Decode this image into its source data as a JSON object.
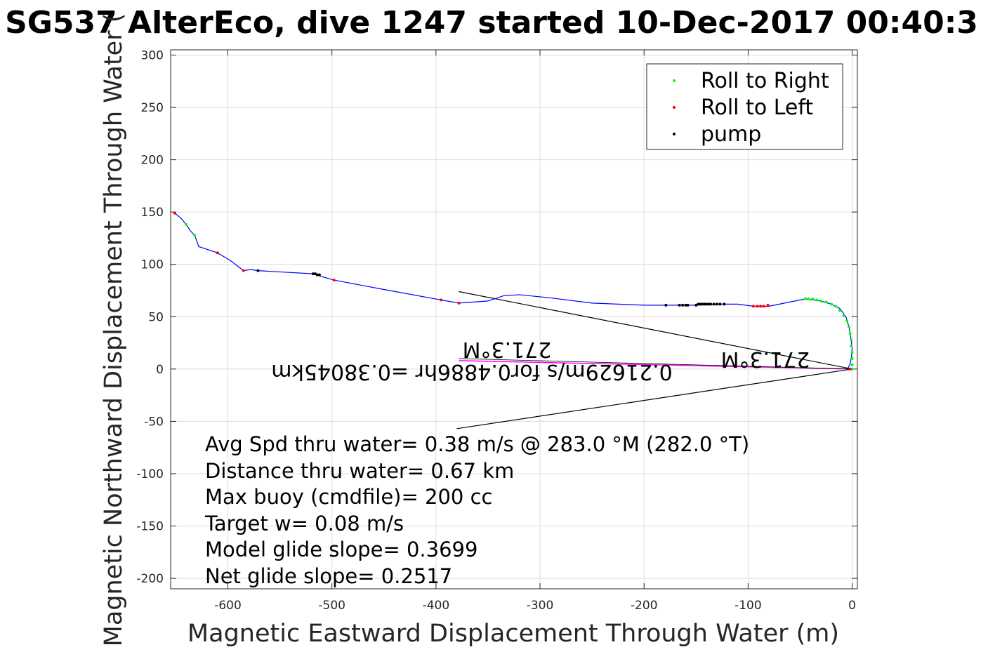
{
  "chart_data": {
    "type": "scatter",
    "title": "SG537 AlterEco, dive 1247 started 10-Dec-2017 00:40:3",
    "xlabel": "Magnetic Eastward Displacement Through Water (m)",
    "ylabel": "Magnetic Northward Displacement Through Water (",
    "xlim": [
      -655,
      5
    ],
    "ylim": [
      -210,
      305
    ],
    "xticks": [
      -600,
      -500,
      -400,
      -300,
      -200,
      -100,
      0
    ],
    "yticks": [
      300,
      250,
      200,
      150,
      100,
      50,
      0,
      -50,
      -100,
      -150,
      -200
    ],
    "grid": true,
    "legend_position": "top-right",
    "colors": {
      "track": "#0000ff",
      "roll_right": "#00ff00",
      "roll_left": "#ff0000",
      "pump": "#000000",
      "current": "#ff00ff",
      "arrow": "#000000"
    },
    "series": [
      {
        "name": "Roll to Right",
        "x": [
          -651,
          -640,
          -632,
          -45,
          -42,
          -38,
          -34,
          -30,
          -25,
          -20,
          -16,
          -12,
          -8,
          -5,
          -3,
          -2,
          -1,
          -1,
          0,
          0,
          0,
          0
        ],
        "y": [
          149,
          138,
          128,
          67,
          67,
          67,
          66,
          65,
          64,
          62,
          60,
          56,
          51,
          46,
          40,
          34,
          28,
          22,
          16,
          10,
          4,
          0
        ]
      },
      {
        "name": "Roll to Left",
        "x": [
          -651,
          -610,
          -585,
          -498,
          -395,
          -378,
          -95,
          -91,
          -88,
          -85,
          -81,
          -2
        ],
        "y": [
          149,
          111,
          94,
          85,
          66,
          63,
          60,
          60,
          60,
          60,
          61,
          0
        ]
      },
      {
        "name": "pump",
        "x": [
          -571,
          -518,
          -516,
          -514,
          -512,
          -179,
          -166,
          -163,
          -160,
          -158,
          -150,
          -148,
          -146,
          -144,
          -142,
          -140,
          -138,
          -136,
          -133,
          -130,
          -127,
          -123
        ],
        "y": [
          94,
          91,
          91,
          90,
          90,
          61,
          61,
          61,
          61,
          61,
          61,
          62,
          62,
          62,
          62,
          62,
          62,
          62,
          62,
          62,
          62,
          62
        ]
      }
    ],
    "track": {
      "x": [
        -651,
        -645,
        -640,
        -636,
        -632,
        -628,
        -616,
        -610,
        -598,
        -585,
        -578,
        -571,
        -518,
        -512,
        -498,
        -450,
        -395,
        -378,
        -350,
        -335,
        -320,
        -290,
        -250,
        -200,
        -179,
        -166,
        -150,
        -130,
        -110,
        -95,
        -80,
        -65,
        -45,
        -30,
        -20,
        -12,
        -6,
        -3,
        -1,
        0,
        -1,
        -2,
        -4,
        0
      ],
      "y": [
        149,
        144,
        138,
        132,
        128,
        117,
        113,
        111,
        104,
        94,
        95,
        94,
        91,
        89,
        85,
        76,
        66,
        63,
        65,
        70,
        71,
        68,
        63,
        61,
        61,
        61,
        61,
        62,
        62,
        60,
        60,
        63,
        67,
        65,
        62,
        58,
        50,
        40,
        28,
        20,
        10,
        5,
        1,
        0
      ]
    },
    "depth_avg_current": {
      "label": "0.21629m/s for0.4886hr =0.38045km",
      "heading_label": "271.3°M",
      "x": [
        0,
        -378
      ],
      "y": [
        0,
        8
      ]
    },
    "direction_lines": {
      "label": "271.3°M",
      "x": [
        -378,
        0,
        -380
      ],
      "y": [
        74,
        0,
        -57
      ]
    },
    "annotations": [
      "Avg Spd thru water=  0.38 m/s @ 283.0 °M (282.0 °T)",
      "Distance thru water=  0.67 km",
      "Max buoy (cmdfile)= 200 cc",
      "Target w= 0.08 m/s",
      "Model glide slope= 0.3699",
      "Net glide slope= 0.2517"
    ]
  }
}
